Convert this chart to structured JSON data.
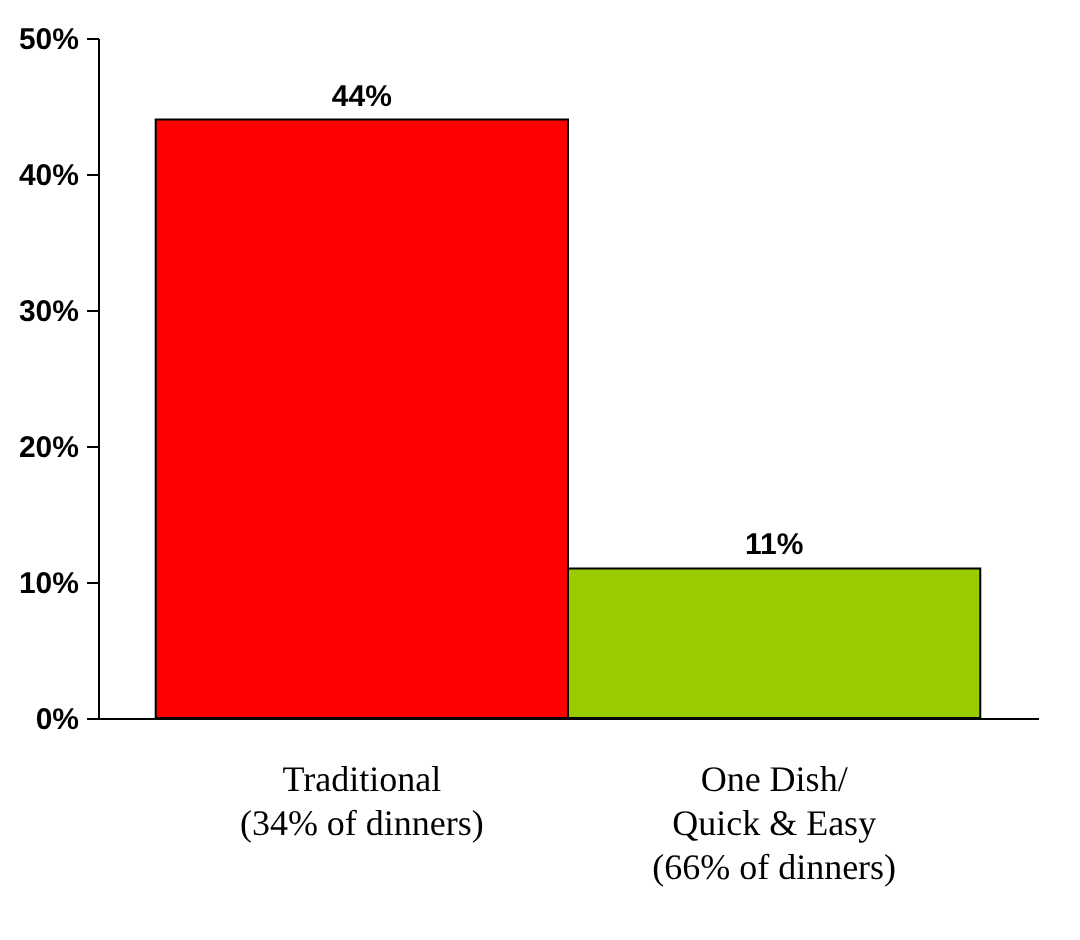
{
  "chart_data": {
    "type": "bar",
    "categories": [
      "Traditional\n(34% of dinners)",
      "One Dish/\nQuick & Easy\n(66% of dinners)"
    ],
    "values": [
      44,
      11
    ],
    "colors": [
      "#ff0000",
      "#99cc00"
    ],
    "value_labels": [
      "44%",
      "11%"
    ],
    "ylim": [
      0,
      50
    ],
    "yticks": [
      {
        "value": 0,
        "label": "0%"
      },
      {
        "value": 10,
        "label": "10%"
      },
      {
        "value": 20,
        "label": "20%"
      },
      {
        "value": 30,
        "label": "30%"
      },
      {
        "value": 40,
        "label": "40%"
      },
      {
        "value": 50,
        "label": "50%"
      }
    ],
    "grid": false
  }
}
